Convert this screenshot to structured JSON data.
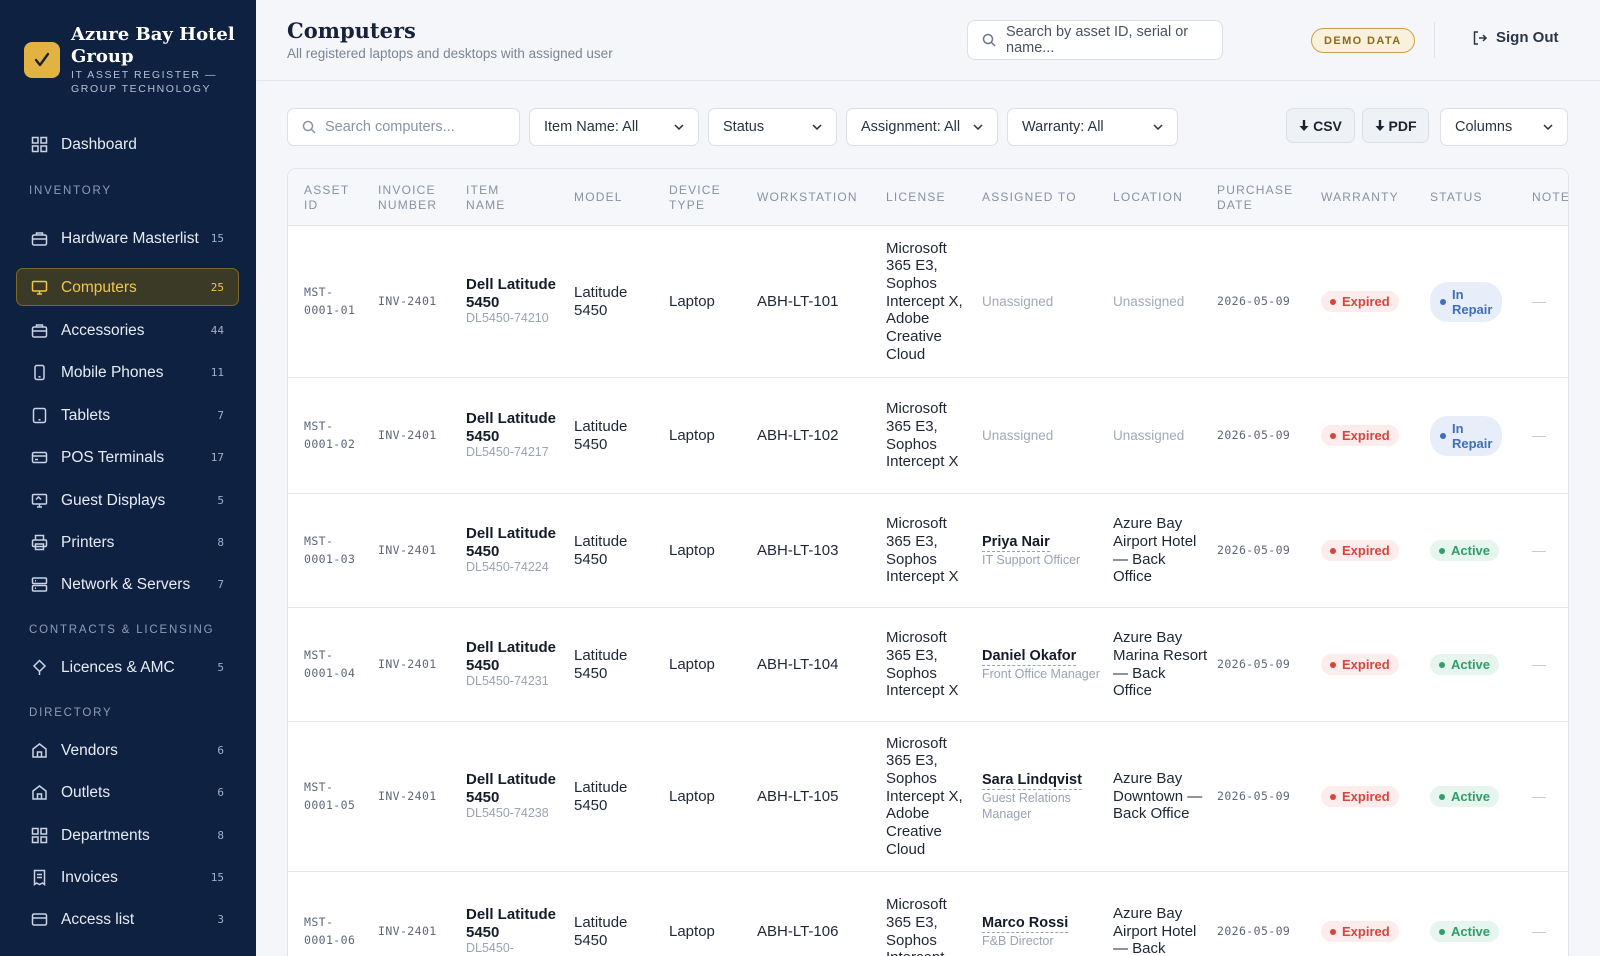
{
  "brand": {
    "title": "Azure Bay Hotel Group",
    "subtitle": "IT ASSET REGISTER — GROUP TECHNOLOGY"
  },
  "nav": {
    "dashboard": "Dashboard",
    "sections": {
      "inventory": "INVENTORY",
      "contracts": "CONTRACTS & LICENSING",
      "directory": "DIRECTORY"
    },
    "items": [
      {
        "label": "Hardware Masterlist",
        "count": "15",
        "icon": "box-icon"
      },
      {
        "label": "Computers",
        "count": "25",
        "icon": "monitor-icon",
        "active": true
      },
      {
        "label": "Accessories",
        "count": "44",
        "icon": "briefcase-icon"
      },
      {
        "label": "Mobile Phones",
        "count": "11",
        "icon": "phone-icon"
      },
      {
        "label": "Tablets",
        "count": "7",
        "icon": "tablet-icon"
      },
      {
        "label": "POS Terminals",
        "count": "17",
        "icon": "card-icon"
      },
      {
        "label": "Guest Displays",
        "count": "5",
        "icon": "display-icon"
      },
      {
        "label": "Printers",
        "count": "8",
        "icon": "printer-icon"
      },
      {
        "label": "Network & Servers",
        "count": "7",
        "icon": "server-icon"
      },
      {
        "label": "Licences & AMC",
        "count": "5",
        "icon": "key-icon"
      },
      {
        "label": "Vendors",
        "count": "6",
        "icon": "store-icon"
      },
      {
        "label": "Outlets",
        "count": "6",
        "icon": "building-icon"
      },
      {
        "label": "Departments",
        "count": "8",
        "icon": "grid-icon"
      },
      {
        "label": "Invoices",
        "count": "15",
        "icon": "receipt-icon"
      },
      {
        "label": "Access list",
        "count": "3",
        "icon": "list-icon"
      }
    ]
  },
  "header": {
    "title": "Computers",
    "subtitle": "All registered laptops and desktops with assigned user",
    "search_placeholder": "Search by asset ID, serial or name...",
    "demo_badge": "DEMO DATA",
    "sign_out": "Sign Out"
  },
  "filters": {
    "search_placeholder": "Search computers...",
    "item_name": "Item Name: All",
    "status": "Status",
    "assignment": "Assignment: All",
    "warranty": "Warranty: All",
    "csv": "CSV",
    "pdf": "PDF",
    "columns": "Columns"
  },
  "table": {
    "columns": [
      "ASSET ID",
      "INVOICE NUMBER",
      "ITEM NAME",
      "MODEL",
      "DEVICE TYPE",
      "WORKSTATION",
      "LICENSE",
      "ASSIGNED TO",
      "LOCATION",
      "PURCHASE DATE",
      "WARRANTY",
      "STATUS",
      "NOTE"
    ],
    "rows": [
      {
        "asset_id": "MST-0001-01",
        "invoice": "INV-2401",
        "item": "Dell Latitude 5450",
        "serial": "DL5450-74210",
        "model": "Latitude 5450",
        "device_type": "Laptop",
        "workstation": "ABH-LT-101",
        "license": "Microsoft 365 E3, Sophos Intercept X, Adobe Creative Cloud",
        "assigned_name": "",
        "assigned_role": "",
        "assigned_text": "Unassigned",
        "location": "Unassigned",
        "location_muted": true,
        "purchase_date": "2026-05-09",
        "warranty": "Expired",
        "status": "In Repair",
        "note": "—"
      },
      {
        "asset_id": "MST-0001-02",
        "invoice": "INV-2401",
        "item": "Dell Latitude 5450",
        "serial": "DL5450-74217",
        "model": "Latitude 5450",
        "device_type": "Laptop",
        "workstation": "ABH-LT-102",
        "license": "Microsoft 365 E3, Sophos Intercept X",
        "assigned_name": "",
        "assigned_role": "",
        "assigned_text": "Unassigned",
        "location": "Unassigned",
        "location_muted": true,
        "purchase_date": "2026-05-09",
        "warranty": "Expired",
        "status": "In Repair",
        "note": "—"
      },
      {
        "asset_id": "MST-0001-03",
        "invoice": "INV-2401",
        "item": "Dell Latitude 5450",
        "serial": "DL5450-74224",
        "model": "Latitude 5450",
        "device_type": "Laptop",
        "workstation": "ABH-LT-103",
        "license": "Microsoft 365 E3, Sophos Intercept X",
        "assigned_name": "Priya Nair",
        "assigned_role": "IT Support Officer",
        "assigned_text": "",
        "location": "Azure Bay Airport Hotel — Back Office",
        "location_muted": false,
        "purchase_date": "2026-05-09",
        "warranty": "Expired",
        "status": "Active",
        "note": "—"
      },
      {
        "asset_id": "MST-0001-04",
        "invoice": "INV-2401",
        "item": "Dell Latitude 5450",
        "serial": "DL5450-74231",
        "model": "Latitude 5450",
        "device_type": "Laptop",
        "workstation": "ABH-LT-104",
        "license": "Microsoft 365 E3, Sophos Intercept X",
        "assigned_name": "Daniel Okafor",
        "assigned_role": "Front Office Manager",
        "assigned_text": "",
        "location": "Azure Bay Marina Resort — Back Office",
        "location_muted": false,
        "purchase_date": "2026-05-09",
        "warranty": "Expired",
        "status": "Active",
        "note": "—"
      },
      {
        "asset_id": "MST-0001-05",
        "invoice": "INV-2401",
        "item": "Dell Latitude 5450",
        "serial": "DL5450-74238",
        "model": "Latitude 5450",
        "device_type": "Laptop",
        "workstation": "ABH-LT-105",
        "license": "Microsoft 365 E3, Sophos Intercept X, Adobe Creative Cloud",
        "assigned_name": "Sara Lindqvist",
        "assigned_role": "Guest Relations Manager",
        "assigned_text": "",
        "location": "Azure Bay Downtown — Back Office",
        "location_muted": false,
        "purchase_date": "2026-05-09",
        "warranty": "Expired",
        "status": "Active",
        "note": "—"
      },
      {
        "asset_id": "MST-0001-06",
        "invoice": "INV-2401",
        "item": "Dell Latitude 5450",
        "serial": "DL5450-",
        "model": "Latitude 5450",
        "device_type": "Laptop",
        "workstation": "ABH-LT-106",
        "license": "Microsoft 365 E3, Sophos Intercept",
        "assigned_name": "Marco Rossi",
        "assigned_role": "F&B Director",
        "assigned_text": "",
        "location": "Azure Bay Airport Hotel — Back",
        "location_muted": false,
        "purchase_date": "2026-05-09",
        "warranty": "Expired",
        "status": "Active",
        "note": "—"
      }
    ]
  },
  "colors": {
    "sidebar_bg": "#0f2140",
    "accent": "#f2c54b",
    "expired": "#d6453d",
    "active": "#2f9e6b",
    "repair": "#3f6fb8"
  }
}
